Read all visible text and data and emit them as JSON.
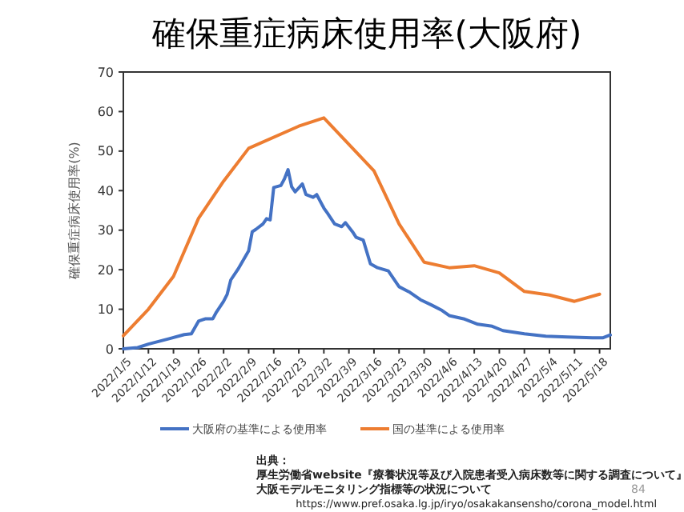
{
  "chart_data": {
    "type": "line",
    "title": "確保重症病床使用率(大阪府)",
    "ylabel": "確保重症病床使用率(%)",
    "xlim": [
      "2022-01-05",
      "2022-05-21"
    ],
    "xticks": [
      {
        "value": "2022-01-05",
        "label": "2022/1/5"
      },
      {
        "value": "2022-01-12",
        "label": "2022/1/12"
      },
      {
        "value": "2022-01-19",
        "label": "2022/1/19"
      },
      {
        "value": "2022-01-26",
        "label": "2022/1/26"
      },
      {
        "value": "2022-02-02",
        "label": "2022/2/2"
      },
      {
        "value": "2022-02-09",
        "label": "2022/2/9"
      },
      {
        "value": "2022-02-16",
        "label": "2022/2/16"
      },
      {
        "value": "2022-02-23",
        "label": "2022/2/23"
      },
      {
        "value": "2022-03-02",
        "label": "2022/3/2"
      },
      {
        "value": "2022-03-09",
        "label": "2022/3/9"
      },
      {
        "value": "2022-03-16",
        "label": "2022/3/16"
      },
      {
        "value": "2022-03-23",
        "label": "2022/3/23"
      },
      {
        "value": "2022-03-30",
        "label": "2022/3/30"
      },
      {
        "value": "2022-04-06",
        "label": "2022/4/6"
      },
      {
        "value": "2022-04-13",
        "label": "2022/4/13"
      },
      {
        "value": "2022-04-20",
        "label": "2022/4/20"
      },
      {
        "value": "2022-04-27",
        "label": "2022/4/27"
      },
      {
        "value": "2022-05-04",
        "label": "2022/5/4"
      },
      {
        "value": "2022-05-11",
        "label": "2022/5/11"
      },
      {
        "value": "2022-05-18",
        "label": "2022/5/18"
      }
    ],
    "ylim": [
      0,
      70
    ],
    "yticks": [
      0,
      10,
      20,
      30,
      40,
      50,
      60,
      70
    ],
    "grid": false,
    "legend": "bottom",
    "marker": "none",
    "line_style": "solid",
    "series": [
      {
        "name": "大阪府の基準による使用率",
        "color": "#4472c4",
        "x": [
          "2022-01-05",
          "2022-01-09",
          "2022-01-12",
          "2022-01-15",
          "2022-01-18",
          "2022-01-22",
          "2022-01-24",
          "2022-01-26",
          "2022-01-28",
          "2022-01-30",
          "2022-01-31",
          "2022-02-02",
          "2022-02-03",
          "2022-02-04",
          "2022-02-06",
          "2022-02-09",
          "2022-02-10",
          "2022-02-11",
          "2022-02-13",
          "2022-02-14",
          "2022-02-15",
          "2022-02-16",
          "2022-02-18",
          "2022-02-19",
          "2022-02-20",
          "2022-02-21",
          "2022-02-22",
          "2022-02-24",
          "2022-02-25",
          "2022-02-27",
          "2022-02-28",
          "2022-03-02",
          "2022-03-03",
          "2022-03-05",
          "2022-03-07",
          "2022-03-08",
          "2022-03-10",
          "2022-03-11",
          "2022-03-13",
          "2022-03-15",
          "2022-03-17",
          "2022-03-20",
          "2022-03-23",
          "2022-03-26",
          "2022-03-29",
          "2022-04-01",
          "2022-04-04",
          "2022-04-06",
          "2022-04-10",
          "2022-04-14",
          "2022-04-18",
          "2022-04-21",
          "2022-04-27",
          "2022-05-03",
          "2022-05-09",
          "2022-05-16",
          "2022-05-19",
          "2022-05-21"
        ],
        "values": [
          0,
          0.3,
          1.2,
          1.9,
          2.6,
          3.6,
          3.8,
          7,
          7.6,
          7.6,
          9.3,
          12,
          13.8,
          17.4,
          20.1,
          24.8,
          29.6,
          30.2,
          31.6,
          32.9,
          32.6,
          40.8,
          41.3,
          43,
          45.3,
          41,
          39.7,
          41.7,
          39,
          38.3,
          39,
          35.6,
          34.3,
          31.6,
          30.9,
          31.9,
          29.6,
          28.2,
          27.5,
          21.5,
          20.5,
          19.7,
          15.7,
          14.3,
          12.4,
          11.1,
          9.7,
          8.4,
          7.6,
          6.2,
          5.7,
          4.6,
          3.8,
          3.2,
          3,
          2.8,
          2.8,
          3.5
        ]
      },
      {
        "name": "国の基準による使用率",
        "color": "#ed7d31",
        "x": [
          "2022-01-05",
          "2022-01-12",
          "2022-01-19",
          "2022-01-26",
          "2022-02-02",
          "2022-02-09",
          "2022-02-23",
          "2022-03-02",
          "2022-03-16",
          "2022-03-23",
          "2022-03-30",
          "2022-04-06",
          "2022-04-13",
          "2022-04-20",
          "2022-04-27",
          "2022-05-04",
          "2022-05-11",
          "2022-05-18"
        ],
        "values": [
          3.3,
          10,
          18.3,
          33,
          42.4,
          50.7,
          56.3,
          58.4,
          45,
          31.6,
          21.9,
          20.5,
          21,
          19.2,
          14.5,
          13.6,
          12,
          13.8
        ]
      }
    ],
    "annotations": [
      "出典：",
      "厚生労働省website『療養状況等及び入院患者受入病床数等に関する調査について』",
      "大阪モデルモニタリング指標等の状況について",
      "https://www.pref.osaka.lg.jp/iryo/osakakansensho/corona_model.html",
      "84"
    ]
  }
}
